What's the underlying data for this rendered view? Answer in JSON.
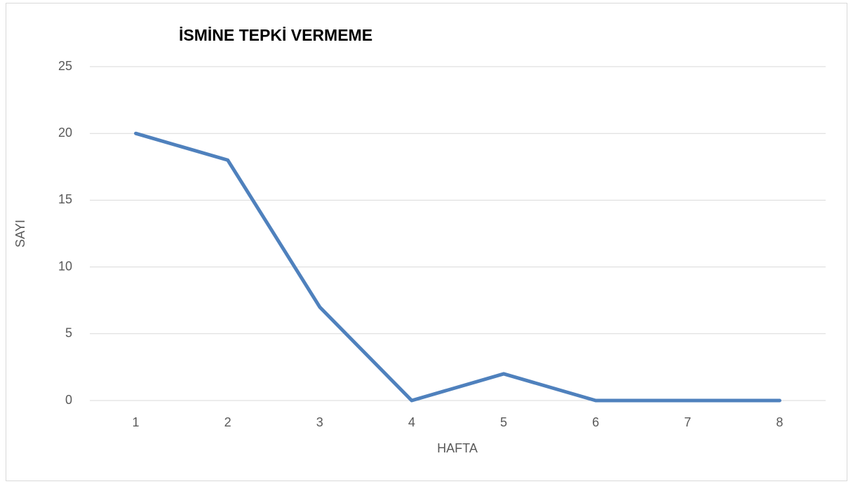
{
  "chart_data": {
    "type": "line",
    "title": "İSMİNE TEPKİ VERMEME",
    "x_label": "HAFTA",
    "y_label": "SAYI",
    "categories": [
      "1",
      "2",
      "3",
      "4",
      "5",
      "6",
      "7",
      "8"
    ],
    "series": [
      {
        "color": "#4f81bd",
        "values": [
          20,
          18,
          7,
          0,
          2,
          0,
          0,
          0
        ]
      }
    ],
    "ylim": [
      0,
      25
    ],
    "yticks": [
      0,
      5,
      10,
      15,
      20,
      25
    ],
    "grid": true
  }
}
